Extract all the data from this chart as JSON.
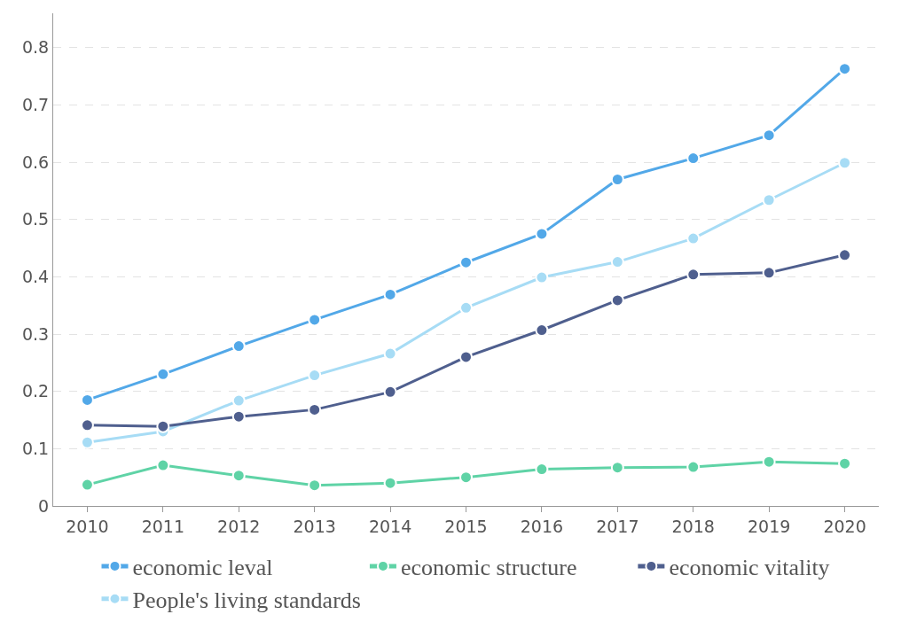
{
  "chart_data": {
    "type": "line",
    "categories": [
      "2010",
      "2011",
      "2012",
      "2013",
      "2014",
      "2015",
      "2016",
      "2017",
      "2018",
      "2019",
      "2020"
    ],
    "series": [
      {
        "name": "economic leval",
        "color": "#52a8e8",
        "values": [
          0.185,
          0.23,
          0.279,
          0.325,
          0.369,
          0.425,
          0.475,
          0.57,
          0.607,
          0.647,
          0.763
        ]
      },
      {
        "name": "economic structure",
        "color": "#5fd3a6",
        "values": [
          0.037,
          0.071,
          0.053,
          0.036,
          0.04,
          0.05,
          0.064,
          0.067,
          0.068,
          0.077,
          0.074
        ]
      },
      {
        "name": "economic vitality",
        "color": "#4f5f8e",
        "values": [
          0.141,
          0.139,
          0.156,
          0.168,
          0.199,
          0.26,
          0.307,
          0.359,
          0.404,
          0.407,
          0.438
        ]
      },
      {
        "name": "People's living standards",
        "color": "#a7dcf5",
        "values": [
          0.111,
          0.13,
          0.184,
          0.228,
          0.266,
          0.346,
          0.399,
          0.426,
          0.467,
          0.534,
          0.599
        ]
      }
    ],
    "ylim": [
      0,
      0.86
    ],
    "yticks": [
      0,
      0.1,
      0.2,
      0.3,
      0.4,
      0.5,
      0.6,
      0.7,
      0.8
    ],
    "grid": "y",
    "legend": "bottom",
    "marker": "circle",
    "line_style": "solid"
  }
}
